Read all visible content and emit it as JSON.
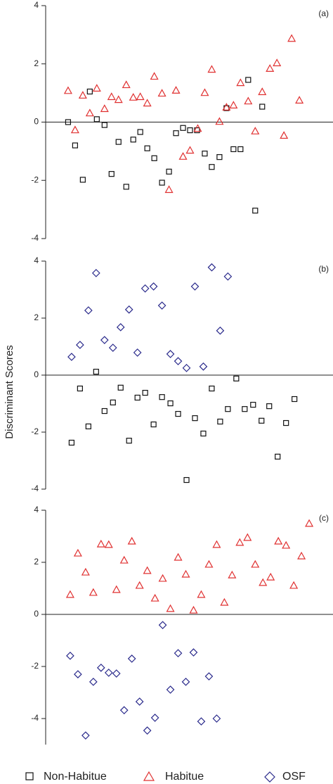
{
  "ylabel": "Discriminant Scores",
  "chart_data": [
    {
      "type": "scatter",
      "label": "(a)",
      "xlim": [
        0,
        41
      ],
      "ylim": [
        -4,
        4
      ],
      "yticks": [
        -4,
        -2,
        0,
        2,
        4
      ],
      "series": [
        {
          "name": "Non-Habitue",
          "color": "#111111",
          "marker": "square",
          "x": [
            3.2,
            4.2,
            5.3,
            6.3,
            7.3,
            8.4,
            9.4,
            10.4,
            11.5,
            12.5,
            13.5,
            14.5,
            15.5,
            16.6,
            17.6,
            18.6,
            19.6,
            20.6,
            21.6,
            22.7,
            23.7,
            24.8,
            25.8,
            26.8,
            27.8,
            28.9,
            29.9,
            30.9
          ],
          "values": [
            0,
            -0.8,
            -1.98,
            1.05,
            0.1,
            -0.1,
            -1.78,
            -0.68,
            -2.22,
            -0.6,
            -0.34,
            -0.9,
            -1.24,
            -2.08,
            -1.7,
            -0.38,
            -0.2,
            -0.28,
            -0.28,
            -1.08,
            -1.54,
            -1.2,
            0.48,
            -0.93,
            -0.93,
            1.45,
            -3.04,
            0.53
          ]
        },
        {
          "name": "Habitue",
          "color": "#e03030",
          "marker": "triangle",
          "x": [
            3.2,
            4.2,
            5.3,
            6.3,
            7.3,
            8.4,
            9.4,
            10.4,
            11.5,
            12.5,
            13.5,
            14.5,
            15.5,
            16.6,
            17.6,
            18.6,
            19.6,
            20.6,
            21.7,
            22.7,
            23.7,
            24.8,
            25.8,
            26.8,
            27.8,
            28.9,
            29.9,
            30.9,
            32,
            33,
            34,
            35.1,
            36.2
          ],
          "values": [
            1.08,
            -0.27,
            0.92,
            0.31,
            1.16,
            0.46,
            0.87,
            0.77,
            1.28,
            0.85,
            0.87,
            0.65,
            1.57,
            0.99,
            -2.32,
            1.09,
            -1.18,
            -0.97,
            -0.22,
            1.01,
            1.81,
            0.02,
            0.51,
            0.58,
            1.35,
            0.72,
            -0.31,
            1.04,
            1.84,
            2.03,
            -0.46,
            2.87,
            0.75
          ]
        }
      ]
    },
    {
      "type": "scatter",
      "label": "(b)",
      "xlim": [
        0,
        41
      ],
      "ylim": [
        -4,
        4
      ],
      "yticks": [
        -4,
        -2,
        0,
        2,
        4
      ],
      "series": [
        {
          "name": "Non-Habitue",
          "color": "#111111",
          "marker": "square",
          "x": [
            3.7,
            4.9,
            6.1,
            7.2,
            8.4,
            9.6,
            10.7,
            11.9,
            13.1,
            14.2,
            15.4,
            16.6,
            17.8,
            18.9,
            20.1,
            21.3,
            22.5,
            23.7,
            24.9,
            26,
            27.2,
            28.4,
            29.6,
            30.8,
            31.9,
            33.1,
            34.3,
            35.5
          ],
          "values": [
            -2.37,
            -0.47,
            -1.8,
            0.12,
            -1.26,
            -0.96,
            -0.44,
            -2.3,
            -0.79,
            -0.62,
            -1.73,
            -0.77,
            -0.99,
            -1.36,
            -3.68,
            -1.51,
            -2.05,
            -0.47,
            -1.63,
            -1.19,
            -0.12,
            -1.19,
            -1.04,
            -1.6,
            -1.09,
            -2.86,
            -1.68,
            -0.84
          ]
        },
        {
          "name": "OSF",
          "color": "#2b2b8c",
          "marker": "diamond",
          "x": [
            3.7,
            4.9,
            6.1,
            7.2,
            8.4,
            9.6,
            10.7,
            11.9,
            13.1,
            14.2,
            15.4,
            16.6,
            17.8,
            18.9,
            20.1,
            21.3,
            22.5,
            23.7,
            24.9,
            26
          ],
          "values": [
            0.64,
            1.06,
            2.27,
            3.58,
            1.23,
            0.96,
            1.68,
            2.3,
            0.79,
            3.04,
            3.11,
            2.44,
            0.74,
            0.49,
            0.25,
            3.11,
            0.3,
            3.78,
            1.56,
            3.46
          ]
        }
      ]
    },
    {
      "type": "scatter",
      "label": "(c)",
      "xlim": [
        0,
        41
      ],
      "ylim": [
        -5,
        4
      ],
      "yticks": [
        -4,
        -2,
        0,
        2,
        4
      ],
      "series": [
        {
          "name": "Habitue",
          "color": "#e03030",
          "marker": "triangle",
          "x": [
            3.5,
            4.6,
            5.7,
            6.8,
            7.9,
            9,
            10.1,
            11.2,
            12.3,
            13.4,
            14.5,
            15.6,
            16.7,
            17.8,
            18.9,
            20,
            21.1,
            22.2,
            23.3,
            24.4,
            25.5,
            26.6,
            27.7,
            28.8,
            29.9,
            31,
            32.1,
            33.2,
            34.3,
            35.4,
            36.5,
            37.6
          ],
          "values": [
            0.76,
            2.35,
            1.62,
            0.84,
            2.7,
            2.68,
            0.95,
            2.08,
            2.81,
            1.11,
            1.68,
            0.62,
            1.38,
            0.22,
            2.19,
            1.54,
            0.16,
            0.76,
            1.92,
            2.68,
            0.46,
            1.51,
            2.76,
            2.95,
            1.92,
            1.22,
            1.43,
            2.81,
            2.65,
            1.11,
            2.24,
            3.49
          ]
        },
        {
          "name": "OSF",
          "color": "#2b2b8c",
          "marker": "diamond",
          "x": [
            3.5,
            4.6,
            5.7,
            6.8,
            7.9,
            9,
            10.1,
            11.2,
            12.3,
            13.4,
            14.5,
            15.6,
            16.7,
            17.8,
            18.9,
            20,
            21.1,
            22.2,
            23.3,
            24.4
          ],
          "values": [
            -1.59,
            -2.3,
            -4.65,
            -2.59,
            -2.05,
            -2.24,
            -2.27,
            -3.68,
            -1.7,
            -3.35,
            -4.46,
            -3.97,
            -0.41,
            -2.89,
            -1.49,
            -2.59,
            -1.46,
            -4.11,
            -2.38,
            -4.0
          ]
        }
      ]
    }
  ]
}
